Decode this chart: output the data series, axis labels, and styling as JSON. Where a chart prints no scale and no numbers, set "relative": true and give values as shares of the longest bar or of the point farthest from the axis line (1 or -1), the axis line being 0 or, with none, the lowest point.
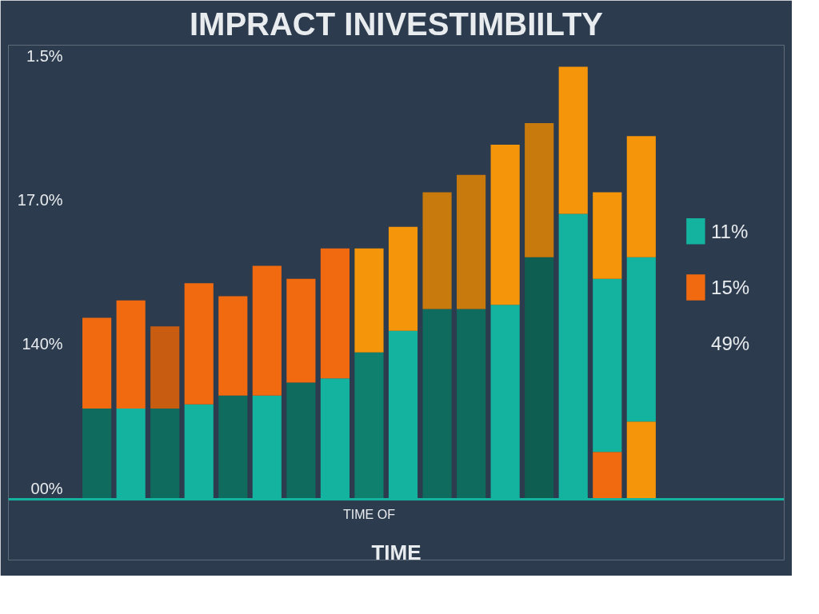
{
  "chart_data": {
    "type": "bar",
    "title": "IMPRACT INIVESTIMBIILTY",
    "xlabel": "TIME",
    "relative": true,
    "stacked": true,
    "legend": "right",
    "grid": false,
    "categories": [
      null,
      null,
      null,
      null,
      null,
      null,
      null,
      null,
      null,
      null,
      null,
      null,
      null,
      null,
      null,
      null,
      null
    ],
    "series": [
      {
        "color": "#f26a10",
        "colors": [
          "#f26a10",
          "#f26a10",
          "#f26a10",
          "#f26a10",
          "#f26a10",
          "#f26a10",
          "#f26a10",
          "#f26a10",
          "#f26a10",
          "#f26a10",
          "#f26a10",
          "#f26a10",
          "#f26a10",
          "#f26a10",
          "#f26a10",
          "#f26a10",
          "#f5960a"
        ],
        "values": [
          0,
          0,
          0,
          0,
          0,
          0,
          0,
          0,
          0,
          0,
          0,
          0,
          0,
          0,
          0,
          0.11,
          0.18
        ]
      },
      {
        "name": "11%",
        "color": "#14b3a0",
        "colors": [
          "#0f6b5e",
          "#14b3a0",
          "#0f6b5e",
          "#14b3a0",
          "#0f6b5e",
          "#14b3a0",
          "#0f6b5e",
          "#14b3a0",
          "#0f7f6e",
          "#14b3a0",
          "#0f6b5e",
          "#0f6b5e",
          "#14b3a0",
          "#0f5e52",
          "#14b3a0",
          "#14b3a0",
          "#14b3a0"
        ],
        "values": [
          0.21,
          0.21,
          0.21,
          0.22,
          0.24,
          0.24,
          0.27,
          0.28,
          0.34,
          0.39,
          0.44,
          0.44,
          0.45,
          0.56,
          0.66,
          0.4,
          0.38
        ]
      },
      {
        "name": "15%",
        "color": "#f26a10",
        "colors": [
          "#f26a10",
          "#f26a10",
          "#c85d12",
          "#f26a10",
          "#f26a10",
          "#f26a10",
          "#f26a10",
          "#f26a10",
          "#f5960a",
          "#f5960a",
          "#c87a0c",
          "#c87a0c",
          "#f5960a",
          "#c87a0c",
          "#f5960a",
          "#f5960a",
          "#f5960a"
        ],
        "values": [
          0.21,
          0.25,
          0.19,
          0.28,
          0.23,
          0.3,
          0.24,
          0.3,
          0.24,
          0.24,
          0.27,
          0.31,
          0.37,
          0.31,
          0.34,
          0.2,
          0.28
        ]
      }
    ],
    "annotations": [
      "1.5%",
      "17.0%",
      "140%",
      "00%",
      "TIME OF",
      "49%"
    ]
  }
}
